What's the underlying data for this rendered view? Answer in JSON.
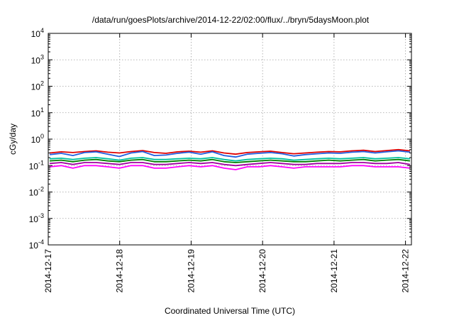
{
  "chart_data": {
    "type": "line",
    "title": "/data/run/goesPlots/archive/2014-12-22/02:00/flux/../bryn/5daysMoon.plot",
    "xlabel": "Coordinated Universal Time (UTC)",
    "ylabel": "cGy/day",
    "y_scale": "log",
    "ylim": [
      0.0001,
      10000
    ],
    "xlim": [
      "2014-12-17",
      "2014-12-22 02:00"
    ],
    "grid": true,
    "x_ticks": [
      "2014-12-17",
      "2014-12-18",
      "2014-12-19",
      "2014-12-20",
      "2014-12-21",
      "2014-12-22"
    ],
    "y_ticks": [
      {
        "value": 0.0001,
        "base": "10",
        "exp": "-4"
      },
      {
        "value": 0.001,
        "base": "10",
        "exp": "-3"
      },
      {
        "value": 0.01,
        "base": "10",
        "exp": "-2"
      },
      {
        "value": 0.1,
        "base": "10",
        "exp": "-1"
      },
      {
        "value": 1,
        "base": "10",
        "exp": "0"
      },
      {
        "value": 10,
        "base": "10",
        "exp": "1"
      },
      {
        "value": 100,
        "base": "10",
        "exp": "2"
      },
      {
        "value": 1000,
        "base": "10",
        "exp": "3"
      },
      {
        "value": 10000,
        "base": "10",
        "exp": "4"
      }
    ],
    "series": [
      {
        "color": "#e00000",
        "values": [
          0.3,
          0.33,
          0.31,
          0.34,
          0.36,
          0.32,
          0.3,
          0.34,
          0.37,
          0.31,
          0.29,
          0.33,
          0.35,
          0.32,
          0.36,
          0.3,
          0.27,
          0.31,
          0.33,
          0.35,
          0.31,
          0.28,
          0.3,
          0.32,
          0.34,
          0.33,
          0.36,
          0.38,
          0.34,
          0.37,
          0.4,
          0.36
        ]
      },
      {
        "color": "#2060e0",
        "values": [
          0.26,
          0.29,
          0.24,
          0.31,
          0.33,
          0.27,
          0.22,
          0.3,
          0.34,
          0.24,
          0.25,
          0.29,
          0.32,
          0.27,
          0.33,
          0.24,
          0.21,
          0.27,
          0.29,
          0.31,
          0.28,
          0.23,
          0.26,
          0.28,
          0.3,
          0.29,
          0.32,
          0.34,
          0.3,
          0.33,
          0.36,
          0.32
        ]
      },
      {
        "color": "#00c0a0",
        "values": [
          0.18,
          0.19,
          0.17,
          0.19,
          0.2,
          0.18,
          0.16,
          0.19,
          0.2,
          0.17,
          0.17,
          0.18,
          0.19,
          0.18,
          0.2,
          0.17,
          0.15,
          0.17,
          0.18,
          0.19,
          0.18,
          0.16,
          0.17,
          0.18,
          0.19,
          0.18,
          0.19,
          0.2,
          0.18,
          0.19,
          0.2,
          0.18
        ]
      },
      {
        "color": "#008000",
        "values": [
          0.15,
          0.16,
          0.14,
          0.16,
          0.17,
          0.15,
          0.14,
          0.16,
          0.17,
          0.14,
          0.14,
          0.15,
          0.16,
          0.15,
          0.17,
          0.14,
          0.13,
          0.14,
          0.15,
          0.16,
          0.15,
          0.14,
          0.14,
          0.15,
          0.16,
          0.15,
          0.16,
          0.17,
          0.15,
          0.16,
          0.17,
          0.15
        ]
      },
      {
        "color": "#a000a0",
        "values": [
          0.12,
          0.13,
          0.11,
          0.13,
          0.13,
          0.12,
          0.11,
          0.13,
          0.13,
          0.11,
          0.11,
          0.12,
          0.13,
          0.12,
          0.13,
          0.11,
          0.1,
          0.11,
          0.12,
          0.13,
          0.12,
          0.11,
          0.11,
          0.12,
          0.12,
          0.12,
          0.13,
          0.13,
          0.12,
          0.12,
          0.13,
          0.11
        ]
      },
      {
        "color": "#ff00ff",
        "values": [
          0.09,
          0.1,
          0.08,
          0.1,
          0.1,
          0.09,
          0.08,
          0.1,
          0.1,
          0.08,
          0.08,
          0.09,
          0.1,
          0.09,
          0.1,
          0.08,
          0.07,
          0.09,
          0.09,
          0.1,
          0.09,
          0.08,
          0.09,
          0.09,
          0.09,
          0.09,
          0.1,
          0.1,
          0.09,
          0.09,
          0.09,
          0.08
        ]
      }
    ]
  }
}
